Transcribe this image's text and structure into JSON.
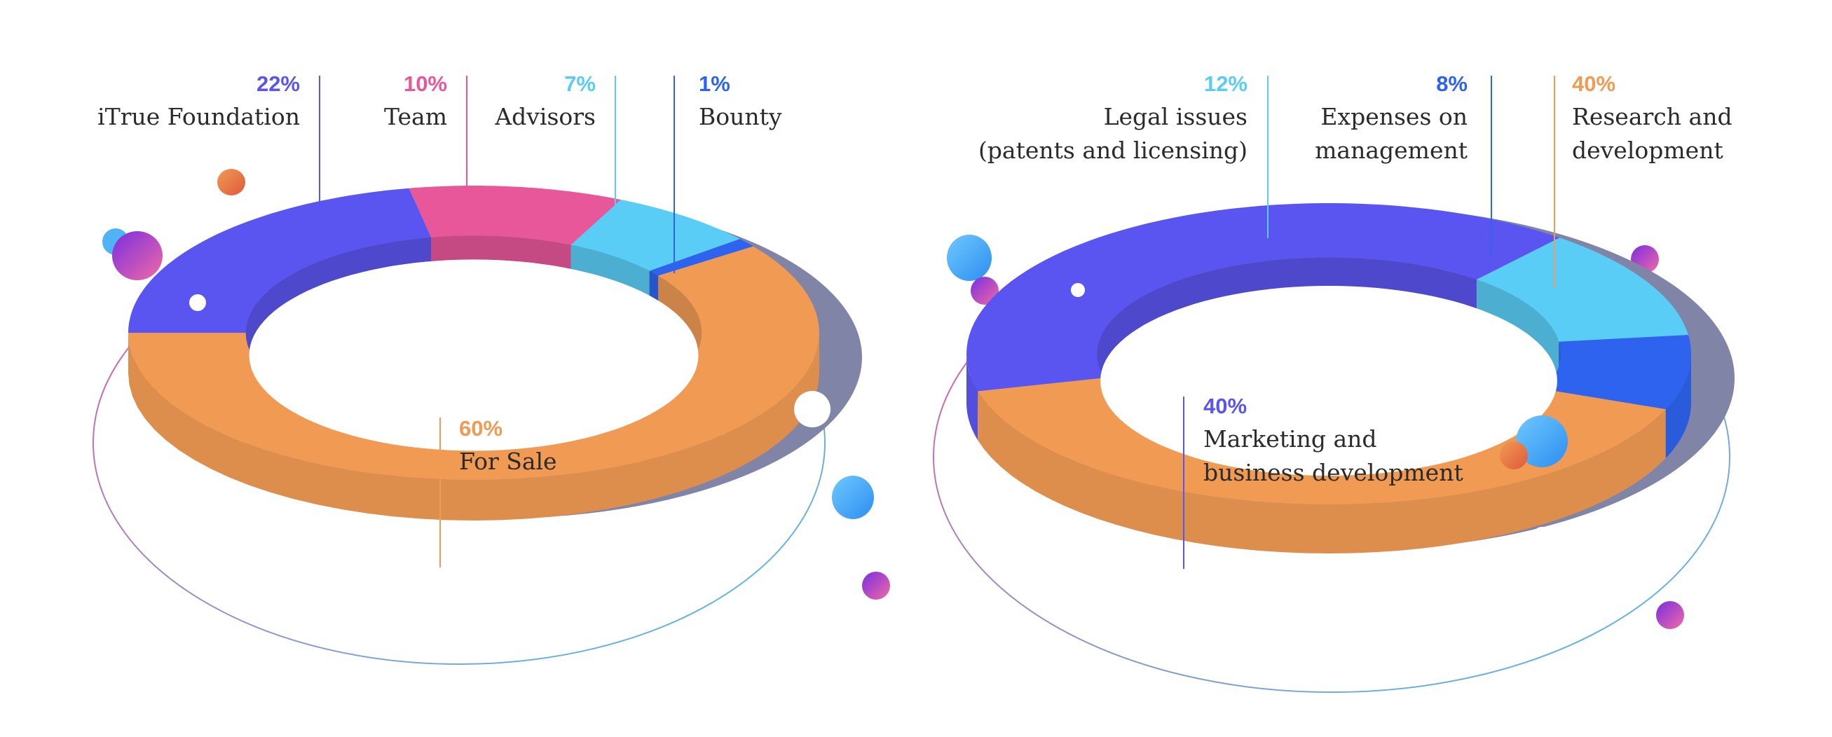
{
  "chart_data": [
    {
      "type": "pie",
      "variant": "3d-donut",
      "title": "",
      "unit": "%",
      "slices": [
        {
          "name": "iTrue Foundation",
          "value": 22,
          "label": "22%",
          "color": "#5a55f0"
        },
        {
          "name": "Team",
          "value": 10,
          "label": "10%",
          "color": "#e8579a"
        },
        {
          "name": "Advisors",
          "value": 7,
          "label": "7%",
          "color": "#59cdf5"
        },
        {
          "name": "Bounty",
          "value": 1,
          "label": "1%",
          "color": "#2d63ee"
        },
        {
          "name": "For Sale",
          "value": 60,
          "label": "60%",
          "color": "#f09a54"
        }
      ]
    },
    {
      "type": "pie",
      "variant": "3d-donut",
      "title": "",
      "unit": "%",
      "slices": [
        {
          "name": "Marketing and business development",
          "value": 40,
          "label": "40%",
          "color": "#5a55f0",
          "lines": [
            "Marketing and",
            "business development"
          ]
        },
        {
          "name": "Legal issues (patents and licensing)",
          "value": 12,
          "label": "12%",
          "color": "#59cdf5",
          "lines": [
            "Legal issues",
            "(patents and licensing)"
          ]
        },
        {
          "name": "Expenses on management",
          "value": 8,
          "label": "8%",
          "color": "#2d63ee",
          "lines": [
            "Expenses on",
            "management"
          ]
        },
        {
          "name": "Research and development",
          "value": 40,
          "label": "40%",
          "color": "#f09a54",
          "lines": [
            "Research and",
            "development"
          ]
        }
      ]
    }
  ]
}
